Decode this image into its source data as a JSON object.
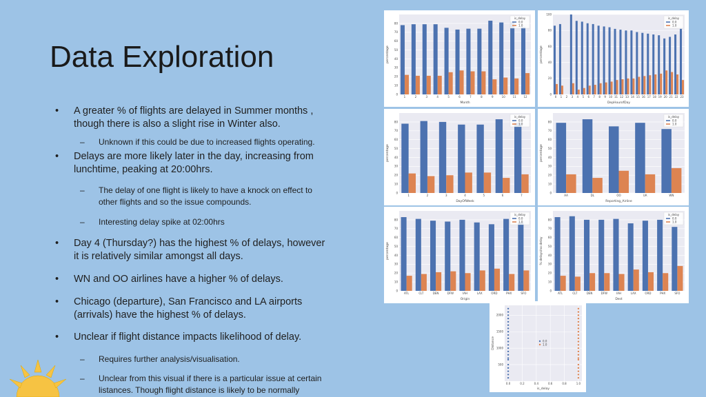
{
  "slide": {
    "title": "Data Exploration",
    "bullets": [
      {
        "level": 1,
        "text_lines": [
          "A greater % of flights are delayed in Summer months ,",
          "though there is also a slight rise in Winter also."
        ]
      },
      {
        "level": 2,
        "text_lines": [
          "Unknown if this could be due to increased flights operating."
        ]
      },
      {
        "level": 1,
        "text_lines": [
          "Delays are more likely later in the day, increasing from",
          "lunchtime, peaking at 20:00hrs."
        ]
      },
      {
        "level": 2,
        "text_lines": [
          "The delay of one flight is likely to have a knock on effect to",
          "other flights and so the issue compounds."
        ]
      },
      {
        "level": 2,
        "text_lines": [
          "Interesting delay spike at 02:00hrs"
        ]
      },
      {
        "level": 1,
        "text_lines": [
          "Day 4 (Thursday?) has the highest % of delays, however",
          "it is relatively similar amongst all days."
        ]
      },
      {
        "level": 1,
        "text_lines": [
          "WN and OO airlines have a higher % of delays."
        ]
      },
      {
        "level": 1,
        "text_lines": [
          "Chicago (departure), San Francisco and LA airports",
          "(arrivals) have the highest % of delays."
        ]
      },
      {
        "level": 1,
        "text_lines": [
          "Unclear if flight distance impacts likelihood of delay."
        ]
      },
      {
        "level": 2,
        "text_lines": [
          "Requires further analysis/visualisation."
        ]
      },
      {
        "level": 2,
        "text_lines": [
          "Unclear from this visual if there is a particular issue at certain",
          " listances. Though flight distance is likely to be normally"
        ]
      }
    ],
    "bullet_glyphs": {
      "level1": "•",
      "level2": "–"
    }
  },
  "colors": {
    "background": "#9dc3e6",
    "series0": "#4c72b0",
    "series1": "#dd8452"
  },
  "chart_data": [
    {
      "type": "bar",
      "xlabel": "Month",
      "ylabel": "percentage",
      "legend_title": "is_delay",
      "legend_position": "top-right",
      "ylim": [
        0,
        90
      ],
      "yticks": [
        0,
        10,
        20,
        30,
        40,
        50,
        60,
        70,
        80
      ],
      "categories": [
        "1",
        "2",
        "3",
        "4",
        "5",
        "6",
        "7",
        "8",
        "9",
        "10",
        "11",
        "12"
      ],
      "series": [
        {
          "name": "0.0",
          "values": [
            78,
            79,
            79,
            79,
            75,
            73,
            74,
            74,
            83,
            81,
            82,
            76
          ]
        },
        {
          "name": "1.0",
          "values": [
            22,
            21,
            21,
            21,
            25,
            27,
            26,
            26,
            17,
            19,
            18,
            24
          ]
        }
      ]
    },
    {
      "type": "bar",
      "xlabel": "DepHourofDay",
      "ylabel": "percentage",
      "legend_title": "is_delay",
      "legend_position": "top-right",
      "ylim": [
        0,
        100
      ],
      "yticks": [
        0,
        20,
        40,
        60,
        80,
        100
      ],
      "categories": [
        "0",
        "1",
        "2",
        "3",
        "4",
        "5",
        "6",
        "7",
        "8",
        "9",
        "10",
        "11",
        "12",
        "13",
        "14",
        "15",
        "16",
        "17",
        "18",
        "19",
        "20",
        "21",
        "22",
        "23"
      ],
      "series": [
        {
          "name": "0.0",
          "values": [
            86,
            88,
            0,
            100,
            92,
            91,
            89,
            88,
            86,
            85,
            84,
            82,
            81,
            80,
            80,
            78,
            77,
            76,
            75,
            74,
            70,
            72,
            75,
            82
          ]
        },
        {
          "name": "1.0",
          "values": [
            13,
            11,
            0,
            14,
            6,
            8,
            11,
            12,
            14,
            15,
            16,
            18,
            19,
            20,
            20,
            22,
            23,
            24,
            25,
            26,
            30,
            28,
            25,
            18
          ]
        }
      ]
    },
    {
      "type": "bar",
      "xlabel": "DayOfWeek",
      "ylabel": "percentage",
      "legend_title": "is_delay",
      "legend_position": "top-right",
      "ylim": [
        0,
        90
      ],
      "yticks": [
        0,
        10,
        20,
        30,
        40,
        50,
        60,
        70,
        80
      ],
      "categories": [
        "1",
        "2",
        "3",
        "4",
        "5",
        "6",
        "7"
      ],
      "series": [
        {
          "name": "0.0",
          "values": [
            78,
            81,
            80,
            77,
            77,
            83,
            79
          ]
        },
        {
          "name": "1.0",
          "values": [
            22,
            19,
            20,
            23,
            23,
            17,
            21
          ]
        }
      ]
    },
    {
      "type": "bar",
      "xlabel": "Reporting_Airline",
      "ylabel": "percentage",
      "legend_title": "is_delay",
      "legend_position": "top-right",
      "ylim": [
        0,
        90
      ],
      "yticks": [
        0,
        10,
        20,
        30,
        40,
        50,
        60,
        70,
        80
      ],
      "categories": [
        "AA",
        "DL",
        "OO",
        "UA",
        "WN"
      ],
      "series": [
        {
          "name": "0.0",
          "values": [
            79,
            83,
            75,
            79,
            72
          ]
        },
        {
          "name": "1.0",
          "values": [
            21,
            17,
            25,
            21,
            28
          ]
        }
      ]
    },
    {
      "type": "bar",
      "xlabel": "Origin",
      "ylabel": "percentage",
      "legend_title": "is_delay",
      "legend_position": "top-right",
      "ylim": [
        0,
        90
      ],
      "yticks": [
        0,
        10,
        20,
        30,
        40,
        50,
        60,
        70,
        80
      ],
      "categories": [
        "ATL",
        "CLT",
        "DEN",
        "DFW",
        "IAH",
        "LAX",
        "ORD",
        "PHX",
        "SFO"
      ],
      "series": [
        {
          "name": "0.0",
          "values": [
            83,
            81,
            79,
            78,
            80,
            77,
            75,
            81,
            77
          ]
        },
        {
          "name": "1.0",
          "values": [
            17,
            19,
            21,
            22,
            20,
            23,
            25,
            19,
            23
          ]
        }
      ]
    },
    {
      "type": "bar",
      "xlabel": "Dest",
      "ylabel": "% delays/no delay",
      "legend_title": "is_delay",
      "legend_position": "top-right",
      "ylim": [
        0,
        90
      ],
      "yticks": [
        0,
        10,
        20,
        30,
        40,
        50,
        60,
        70,
        80
      ],
      "categories": [
        "ATL",
        "CLT",
        "DEN",
        "DFW",
        "IAH",
        "LAX",
        "ORD",
        "PHX",
        "SFO"
      ],
      "series": [
        {
          "name": "0.0",
          "values": [
            83,
            84,
            80,
            80,
            81,
            76,
            79,
            80,
            72
          ]
        },
        {
          "name": "1.0",
          "values": [
            17,
            16,
            20,
            20,
            19,
            24,
            21,
            20,
            28
          ]
        }
      ]
    },
    {
      "type": "scatter",
      "xlabel": "is_delay",
      "ylabel": "Distance",
      "legend_position": "center",
      "xlim": [
        -0.05,
        1.05
      ],
      "ylim": [
        0,
        2300
      ],
      "xticks": [
        "0.0",
        "0.2",
        "0.4",
        "0.6",
        "0.8",
        "1.0"
      ],
      "yticks": [
        500,
        1000,
        1500,
        2000
      ],
      "series": [
        {
          "name": "0.0",
          "x": 0.0,
          "y": [
            100,
            200,
            300,
            400,
            500,
            650,
            700,
            800,
            900,
            1000,
            1100,
            1200,
            1300,
            1400,
            1500,
            1600,
            1700,
            1800,
            1900,
            2000,
            2100,
            2200
          ]
        },
        {
          "name": "1.0",
          "x": 1.0,
          "y": [
            100,
            200,
            300,
            400,
            500,
            650,
            700,
            800,
            900,
            1000,
            1100,
            1200,
            1300,
            1400,
            1500,
            1600,
            1700,
            1800,
            1900,
            2000,
            2100,
            2200
          ]
        }
      ]
    }
  ]
}
